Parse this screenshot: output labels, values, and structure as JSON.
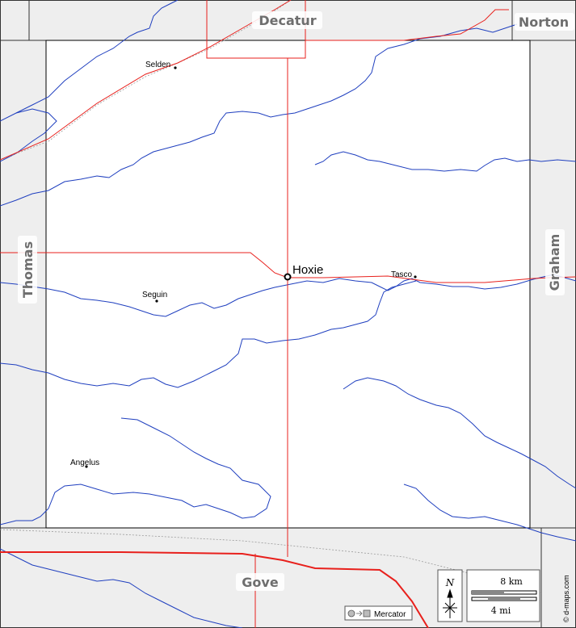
{
  "neighbors": {
    "north": "Decatur",
    "northeast": "Norton",
    "west": "Thomas",
    "east": "Graham",
    "south": "Gove"
  },
  "seat": {
    "name": "Hoxie"
  },
  "towns": [
    {
      "id": "selden",
      "name": "Selden"
    },
    {
      "id": "seguin",
      "name": "Seguin"
    },
    {
      "id": "tasco",
      "name": "Tasco"
    },
    {
      "id": "angelus",
      "name": "Angelus"
    }
  ],
  "scale": {
    "km_label": "8 km",
    "mi_label": "4 mi"
  },
  "north_arrow": {
    "label": "N",
    "icon": "compass-rose-icon"
  },
  "projection": {
    "label": "Mercator",
    "icon": "projection-icon"
  },
  "credit": "© d-maps.com",
  "colors": {
    "outside": "#eeeeee",
    "county": "#ffffff",
    "road": "#e8201c",
    "river": "#1f3fbf",
    "county_label": "#6e6e6e"
  }
}
